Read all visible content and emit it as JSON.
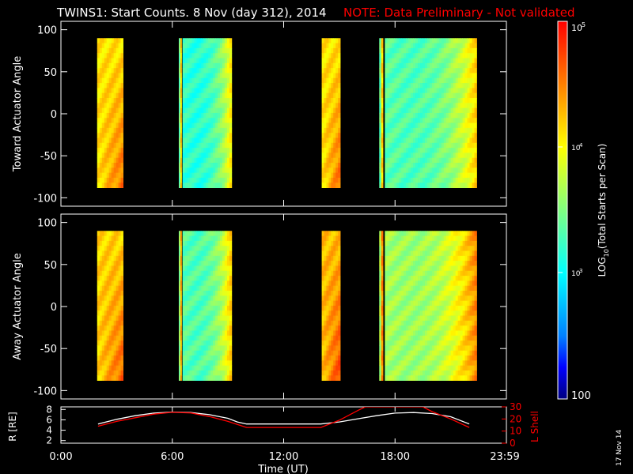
{
  "header": {
    "title": "TWINS1: Start Counts.  8 Nov (day 312), 2014",
    "note": "NOTE: Data Preliminary - Not validated"
  },
  "side_date": "17 Nov 14",
  "colors": {
    "background": "#000000",
    "frame": "#ffffff",
    "note": "#ff0000",
    "r_line": "#ffffff",
    "lshell_line": "#ff0000"
  },
  "colorbar": {
    "label": "LOG10(Total Starts per Scan)",
    "label_main": "LOG",
    "label_sub": "10",
    "label_rest": "(Total Starts per Scan)",
    "range": [
      100,
      100000
    ],
    "scale": "log",
    "tick_labels": {
      "t100": "100",
      "t1000_base": "10",
      "t1000_exp": "3",
      "t10000_base": "10",
      "t10000_exp": "4",
      "t100000_base": "10",
      "t100000_exp": "5"
    },
    "colormap": [
      "#000080",
      "#0000ff",
      "#0080ff",
      "#00c0ff",
      "#00ffff",
      "#40ffc0",
      "#80ff80",
      "#c0ff40",
      "#ffff00",
      "#ffc000",
      "#ff8000",
      "#ff4000",
      "#ff0000"
    ]
  },
  "chart_data": [
    {
      "type": "heatmap",
      "panel": "toward",
      "ylabel": "Toward Actuator Angle",
      "ylim": [
        -110,
        110
      ],
      "yticks": [
        "100",
        "50",
        "0",
        "-50",
        "-100"
      ],
      "xlim": [
        0,
        24
      ],
      "angle_range": [
        -88,
        90
      ],
      "blocks": [
        {
          "x": [
            1.95,
            3.35
          ],
          "level": 0.7
        },
        {
          "x": [
            6.35,
            6.5
          ],
          "level": 0.45
        },
        {
          "x": [
            6.55,
            9.2
          ],
          "level": 0.4
        },
        {
          "x": [
            14.05,
            15.05
          ],
          "level": 0.7
        },
        {
          "x": [
            17.15,
            17.35
          ],
          "level": 0.45
        },
        {
          "x": [
            17.45,
            22.4
          ],
          "level": 0.45
        }
      ]
    },
    {
      "type": "heatmap",
      "panel": "away",
      "ylabel": "Away Actuator Angle",
      "ylim": [
        -110,
        110
      ],
      "yticks": [
        "100",
        "50",
        "0",
        "-50",
        "-100"
      ],
      "xlim": [
        0,
        24
      ],
      "angle_range": [
        -88,
        90
      ],
      "blocks": [
        {
          "x": [
            1.95,
            3.35
          ],
          "level": 0.72
        },
        {
          "x": [
            6.35,
            6.5
          ],
          "level": 0.5
        },
        {
          "x": [
            6.55,
            9.2
          ],
          "level": 0.45
        },
        {
          "x": [
            14.05,
            15.05
          ],
          "level": 0.75
        },
        {
          "x": [
            17.15,
            17.35
          ],
          "level": 0.55
        },
        {
          "x": [
            17.45,
            22.4
          ],
          "level": 0.55
        }
      ]
    },
    {
      "type": "line",
      "panel": "orbit",
      "ylabel_left": "R [RE]",
      "ylabel_right": "L Shell",
      "ylim_left": [
        1.5,
        8.5
      ],
      "ylim_right": [
        0,
        30
      ],
      "yticks_left": [
        "8",
        "6",
        "4",
        "2"
      ],
      "yticks_right": [
        "30",
        "20",
        "10",
        "0"
      ],
      "xlabel": "Time (UT)",
      "xticks": [
        "0:00",
        "6:00",
        "12:00",
        "18:00",
        "23:59"
      ],
      "series": [
        {
          "axis": "left",
          "x": [
            2.0,
            3.0,
            4.0,
            5.0,
            6.0,
            7.0,
            8.0,
            9.0,
            9.5,
            10.0,
            12.0,
            14.0,
            15.0,
            16.0,
            17.0,
            18.0,
            19.0,
            20.0,
            21.0,
            22.0
          ],
          "y": [
            5.2,
            6.1,
            6.8,
            7.3,
            7.5,
            7.4,
            7.0,
            6.3,
            5.6,
            5.2,
            5.2,
            5.2,
            5.6,
            6.2,
            6.8,
            7.3,
            7.4,
            7.2,
            6.6,
            5.2
          ]
        },
        {
          "axis": "right",
          "x": [
            2.0,
            3.0,
            4.0,
            5.0,
            6.0,
            7.0,
            8.0,
            9.0,
            10.0,
            12.0,
            14.0,
            15.0,
            16.0,
            16.4,
            19.5,
            20.0,
            21.0,
            22.0
          ],
          "y": [
            14,
            18,
            21,
            24,
            25.5,
            25,
            22,
            18,
            13,
            13,
            13,
            19,
            27,
            30,
            30,
            26,
            20,
            13
          ]
        }
      ]
    }
  ]
}
